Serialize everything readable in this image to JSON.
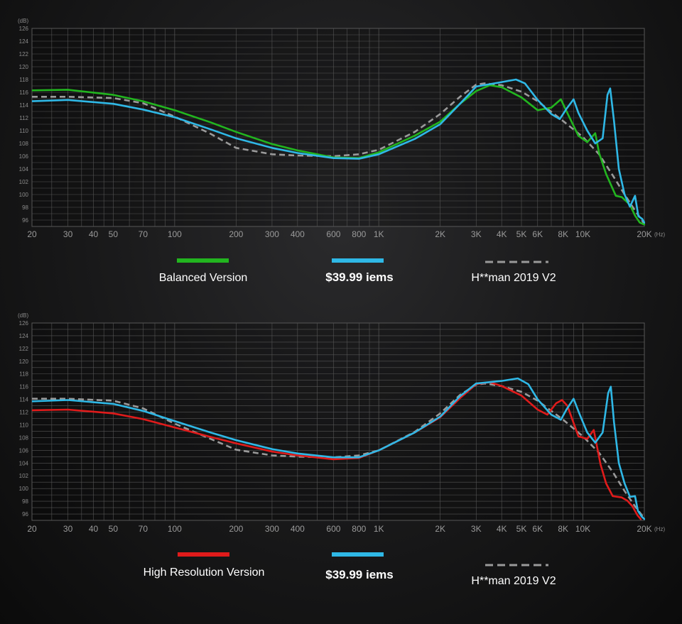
{
  "colors": {
    "background": "#141414",
    "grid": "#555555",
    "balanced": "#22b51f",
    "iems": "#2fb8e6",
    "harman": "#9a9a9a",
    "high_resolution": "#e01b1b"
  },
  "chart_data": [
    {
      "type": "line",
      "y_unit": "(dB)",
      "x_unit": "(Hz)",
      "x_scale": "log",
      "xlim": [
        20,
        20000
      ],
      "ylim": [
        95,
        126
      ],
      "y_ticks": [
        96,
        98,
        100,
        102,
        104,
        106,
        108,
        110,
        112,
        114,
        116,
        118,
        120,
        122,
        124,
        126
      ],
      "x_ticks": [
        {
          "value": 20,
          "label": "20"
        },
        {
          "value": 30,
          "label": "30"
        },
        {
          "value": 40,
          "label": "40"
        },
        {
          "value": 50,
          "label": "50"
        },
        {
          "value": 70,
          "label": "70"
        },
        {
          "value": 100,
          "label": "100"
        },
        {
          "value": 200,
          "label": "200"
        },
        {
          "value": 300,
          "label": "300"
        },
        {
          "value": 400,
          "label": "400"
        },
        {
          "value": 600,
          "label": "600"
        },
        {
          "value": 800,
          "label": "800"
        },
        {
          "value": 1000,
          "label": "1K"
        },
        {
          "value": 2000,
          "label": "2K"
        },
        {
          "value": 3000,
          "label": "3K"
        },
        {
          "value": 4000,
          "label": "4K"
        },
        {
          "value": 5000,
          "label": "5K"
        },
        {
          "value": 6000,
          "label": "6K"
        },
        {
          "value": 8000,
          "label": "8K"
        },
        {
          "value": 10000,
          "label": "10K"
        },
        {
          "value": 20000,
          "label": "20K"
        }
      ],
      "grid": true,
      "legend_position": "bottom",
      "series": [
        {
          "name": "Balanced Version",
          "color": "#22b51f",
          "style": "solid",
          "points": [
            [
              20,
              116.3
            ],
            [
              30,
              116.4
            ],
            [
              50,
              115.6
            ],
            [
              70,
              114.6
            ],
            [
              100,
              113.2
            ],
            [
              150,
              111.3
            ],
            [
              200,
              109.8
            ],
            [
              300,
              107.9
            ],
            [
              400,
              106.9
            ],
            [
              600,
              105.8
            ],
            [
              800,
              105.7
            ],
            [
              1000,
              106.6
            ],
            [
              1500,
              109.2
            ],
            [
              2000,
              111.4
            ],
            [
              2500,
              114.2
            ],
            [
              3000,
              116.2
            ],
            [
              3500,
              117.1
            ],
            [
              4000,
              116.8
            ],
            [
              5000,
              115.2
            ],
            [
              6000,
              113.2
            ],
            [
              7000,
              113.6
            ],
            [
              7800,
              114.9
            ],
            [
              8500,
              112.4
            ],
            [
              9500,
              109.2
            ],
            [
              10500,
              108.2
            ],
            [
              11500,
              109.6
            ],
            [
              12000,
              106.5
            ],
            [
              13000,
              103.2
            ],
            [
              14500,
              99.8
            ],
            [
              15500,
              99.6
            ],
            [
              17000,
              98.4
            ],
            [
              18000,
              96.7
            ],
            [
              19000,
              95.6
            ],
            [
              20000,
              95.3
            ]
          ]
        },
        {
          "name": "$39.99 iems",
          "color": "#2fb8e6",
          "style": "solid",
          "points": [
            [
              20,
              114.6
            ],
            [
              30,
              114.8
            ],
            [
              50,
              114.2
            ],
            [
              70,
              113.3
            ],
            [
              100,
              112.1
            ],
            [
              150,
              110.2
            ],
            [
              200,
              108.8
            ],
            [
              300,
              107.3
            ],
            [
              400,
              106.5
            ],
            [
              600,
              105.7
            ],
            [
              800,
              105.6
            ],
            [
              1000,
              106.3
            ],
            [
              1500,
              108.7
            ],
            [
              2000,
              111.0
            ],
            [
              2500,
              114.2
            ],
            [
              3000,
              116.9
            ],
            [
              4000,
              117.6
            ],
            [
              4700,
              118.0
            ],
            [
              5200,
              117.4
            ],
            [
              6000,
              114.8
            ],
            [
              7000,
              112.6
            ],
            [
              7700,
              111.8
            ],
            [
              8300,
              113.4
            ],
            [
              9000,
              114.9
            ],
            [
              9500,
              112.8
            ],
            [
              10500,
              110.0
            ],
            [
              11500,
              108.0
            ],
            [
              12500,
              108.8
            ],
            [
              13200,
              115.6
            ],
            [
              13600,
              116.6
            ],
            [
              14200,
              111.5
            ],
            [
              15000,
              104.0
            ],
            [
              16000,
              100.0
            ],
            [
              17000,
              98.1
            ],
            [
              18000,
              99.8
            ],
            [
              18700,
              96.6
            ],
            [
              19500,
              96.2
            ],
            [
              20000,
              95.6
            ]
          ]
        },
        {
          "name": "H**man 2019 V2",
          "color": "#9a9a9a",
          "style": "dashed",
          "points": [
            [
              20,
              115.3
            ],
            [
              30,
              115.3
            ],
            [
              50,
              115.1
            ],
            [
              70,
              114.3
            ],
            [
              100,
              112.2
            ],
            [
              150,
              109.5
            ],
            [
              200,
              107.3
            ],
            [
              300,
              106.3
            ],
            [
              400,
              106.1
            ],
            [
              600,
              106.0
            ],
            [
              800,
              106.3
            ],
            [
              1000,
              107.0
            ],
            [
              1500,
              109.8
            ],
            [
              2000,
              112.6
            ],
            [
              2500,
              115.3
            ],
            [
              3000,
              117.2
            ],
            [
              3300,
              117.4
            ],
            [
              4000,
              117.1
            ],
            [
              5000,
              116.1
            ],
            [
              6000,
              114.6
            ],
            [
              8000,
              111.5
            ],
            [
              10000,
              109.0
            ],
            [
              12000,
              106.3
            ],
            [
              14000,
              103.0
            ],
            [
              16000,
              100.0
            ],
            [
              18000,
              97.5
            ],
            [
              20000,
              95.4
            ]
          ]
        }
      ]
    },
    {
      "type": "line",
      "y_unit": "(dB)",
      "x_unit": "(Hz)",
      "x_scale": "log",
      "xlim": [
        20,
        20000
      ],
      "ylim": [
        95,
        126
      ],
      "y_ticks": [
        96,
        98,
        100,
        102,
        104,
        106,
        108,
        110,
        112,
        114,
        116,
        118,
        120,
        122,
        124,
        126
      ],
      "x_ticks": [
        {
          "value": 20,
          "label": "20"
        },
        {
          "value": 30,
          "label": "30"
        },
        {
          "value": 40,
          "label": "40"
        },
        {
          "value": 50,
          "label": "50"
        },
        {
          "value": 70,
          "label": "70"
        },
        {
          "value": 100,
          "label": "100"
        },
        {
          "value": 200,
          "label": "200"
        },
        {
          "value": 300,
          "label": "300"
        },
        {
          "value": 400,
          "label": "400"
        },
        {
          "value": 600,
          "label": "600"
        },
        {
          "value": 800,
          "label": "800"
        },
        {
          "value": 1000,
          "label": "1K"
        },
        {
          "value": 2000,
          "label": "2K"
        },
        {
          "value": 3000,
          "label": "3K"
        },
        {
          "value": 4000,
          "label": "4K"
        },
        {
          "value": 5000,
          "label": "5K"
        },
        {
          "value": 6000,
          "label": "6K"
        },
        {
          "value": 8000,
          "label": "8K"
        },
        {
          "value": 10000,
          "label": "10K"
        },
        {
          "value": 20000,
          "label": "20K"
        }
      ],
      "grid": true,
      "legend_position": "bottom",
      "series": [
        {
          "name": "High Resolution Version",
          "color": "#e01b1b",
          "style": "solid",
          "points": [
            [
              20,
              112.3
            ],
            [
              30,
              112.4
            ],
            [
              50,
              111.8
            ],
            [
              70,
              110.9
            ],
            [
              100,
              109.6
            ],
            [
              150,
              108.1
            ],
            [
              200,
              107.1
            ],
            [
              300,
              105.8
            ],
            [
              400,
              105.2
            ],
            [
              600,
              104.6
            ],
            [
              800,
              104.8
            ],
            [
              1000,
              106.0
            ],
            [
              1500,
              108.8
            ],
            [
              2000,
              111.2
            ],
            [
              2500,
              114.2
            ],
            [
              3000,
              116.4
            ],
            [
              3500,
              116.7
            ],
            [
              4000,
              116.1
            ],
            [
              5000,
              114.6
            ],
            [
              6000,
              112.4
            ],
            [
              6700,
              111.6
            ],
            [
              7400,
              113.4
            ],
            [
              7900,
              113.9
            ],
            [
              8400,
              113.0
            ],
            [
              9500,
              108.2
            ],
            [
              10500,
              107.8
            ],
            [
              11300,
              109.2
            ],
            [
              12200,
              103.8
            ],
            [
              13000,
              100.8
            ],
            [
              14000,
              98.8
            ],
            [
              15500,
              98.6
            ],
            [
              16500,
              98.1
            ],
            [
              17500,
              97.2
            ],
            [
              18500,
              95.8
            ],
            [
              19200,
              95.2
            ]
          ]
        },
        {
          "name": "$39.99 iems",
          "color": "#2fb8e6",
          "style": "solid",
          "points": [
            [
              20,
              113.7
            ],
            [
              30,
              113.9
            ],
            [
              50,
              113.3
            ],
            [
              70,
              112.2
            ],
            [
              100,
              110.6
            ],
            [
              150,
              108.8
            ],
            [
              200,
              107.6
            ],
            [
              300,
              106.2
            ],
            [
              400,
              105.5
            ],
            [
              600,
              104.9
            ],
            [
              800,
              104.9
            ],
            [
              1000,
              106.0
            ],
            [
              1500,
              108.8
            ],
            [
              2000,
              111.3
            ],
            [
              2500,
              114.5
            ],
            [
              3000,
              116.5
            ],
            [
              4000,
              116.9
            ],
            [
              4800,
              117.3
            ],
            [
              5400,
              116.4
            ],
            [
              6000,
              114.0
            ],
            [
              7000,
              111.6
            ],
            [
              7800,
              110.8
            ],
            [
              8300,
              112.4
            ],
            [
              9000,
              114.1
            ],
            [
              9600,
              111.8
            ],
            [
              10500,
              108.8
            ],
            [
              11500,
              107.2
            ],
            [
              12500,
              108.8
            ],
            [
              13300,
              115.0
            ],
            [
              13700,
              116.0
            ],
            [
              14200,
              110.4
            ],
            [
              15000,
              104.0
            ],
            [
              16000,
              100.8
            ],
            [
              17000,
              98.7
            ],
            [
              18000,
              98.8
            ],
            [
              18600,
              96.5
            ],
            [
              19400,
              95.6
            ],
            [
              20000,
              95.2
            ]
          ]
        },
        {
          "name": "H**man 2019 V2",
          "color": "#9a9a9a",
          "style": "dashed",
          "points": [
            [
              20,
              114.1
            ],
            [
              30,
              114.1
            ],
            [
              50,
              113.8
            ],
            [
              70,
              112.6
            ],
            [
              100,
              110.2
            ],
            [
              150,
              107.8
            ],
            [
              200,
              106.1
            ],
            [
              300,
              105.2
            ],
            [
              400,
              105.0
            ],
            [
              600,
              104.9
            ],
            [
              800,
              105.2
            ],
            [
              1000,
              106.0
            ],
            [
              1500,
              108.9
            ],
            [
              2000,
              111.8
            ],
            [
              2500,
              114.7
            ],
            [
              3000,
              116.3
            ],
            [
              3300,
              116.5
            ],
            [
              4000,
              116.1
            ],
            [
              5000,
              115.2
            ],
            [
              6000,
              113.8
            ],
            [
              8000,
              110.8
            ],
            [
              10000,
              108.2
            ],
            [
              12000,
              105.6
            ],
            [
              14000,
              102.6
            ],
            [
              16000,
              99.6
            ],
            [
              18000,
              97.2
            ],
            [
              20000,
              95.3
            ]
          ]
        }
      ]
    }
  ]
}
